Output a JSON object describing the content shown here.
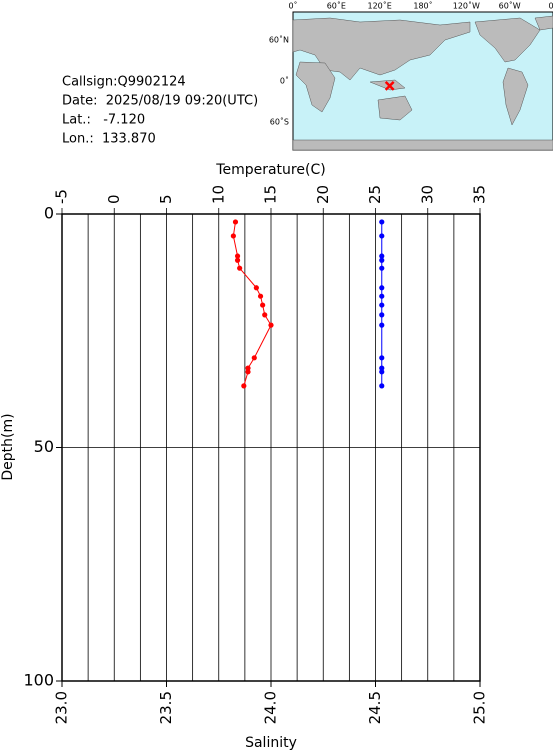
{
  "info": [
    "Callsign:Q9902124",
    "Date:  2025/08/19 09:20(UTC)",
    "Lat.:   -7.120",
    "Lon.:  133.870"
  ],
  "map": {
    "lon_labels": [
      "0˚",
      "60˚E",
      "120˚E",
      "180˚",
      "120˚W",
      "60˚W",
      "0˚"
    ],
    "lat_labels": [
      "60˚N",
      "0˚",
      "60˚S"
    ],
    "position": {
      "lat": -7.12,
      "lon": 133.87,
      "color": "#ff0000"
    }
  },
  "chart_data": {
    "type": "profile",
    "x_label_top": "Temperature(C)",
    "x_label_bottom": "Salinity",
    "y_label": "Depth(m)",
    "xlim": [
      -5,
      35
    ],
    "xticks": [
      -5,
      0,
      5,
      10,
      15,
      20,
      25,
      30,
      35
    ],
    "x_grid": [
      -2.5,
      2.5,
      7.5,
      12.5,
      17.5,
      22.5,
      27.5,
      32.5
    ],
    "x2lim": [
      23.0,
      25.0
    ],
    "x2ticks": [
      {
        "value": 23,
        "label": "23.0"
      },
      23.5,
      {
        "value": 24,
        "label": "24.0"
      },
      24.5,
      {
        "value": 25,
        "label": "25.0"
      }
    ],
    "ylim": [
      0,
      100
    ],
    "yticks": [
      0,
      50,
      100
    ],
    "y_grid": [
      50
    ],
    "y_inverted": true,
    "series": [
      {
        "axis": "x2",
        "color": "#ff0000",
        "depth": [
          1.7,
          4.7,
          9.0,
          9.9,
          11.6,
          15.8,
          17.6,
          19.5,
          21.6,
          23.8,
          30.8,
          33.0,
          33.8,
          36.8
        ],
        "values": [
          23.83,
          23.82,
          23.84,
          23.84,
          23.85,
          23.93,
          23.95,
          23.96,
          23.97,
          24.0,
          23.92,
          23.89,
          23.89,
          23.87
        ]
      },
      {
        "axis": "x",
        "color": "#0000ff",
        "depth": [
          1.7,
          4.7,
          9.0,
          9.9,
          11.6,
          15.8,
          17.6,
          19.5,
          21.6,
          23.8,
          30.8,
          33.0,
          33.8,
          36.8
        ],
        "values": [
          25.6,
          25.6,
          25.6,
          25.6,
          25.6,
          25.6,
          25.6,
          25.6,
          25.6,
          25.6,
          25.6,
          25.6,
          25.6,
          25.6
        ]
      }
    ]
  }
}
